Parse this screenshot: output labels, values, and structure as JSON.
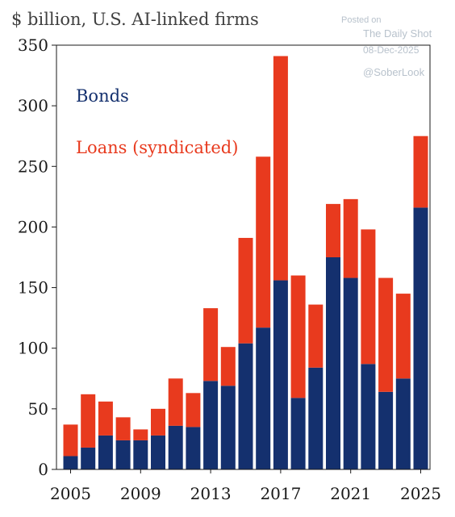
{
  "chart_data": {
    "type": "bar",
    "stacked": true,
    "title": "$ billion, U.S. AI-linked firms",
    "x": [
      2005,
      2006,
      2007,
      2008,
      2009,
      2010,
      2011,
      2012,
      2013,
      2014,
      2015,
      2016,
      2017,
      2018,
      2019,
      2020,
      2021,
      2022,
      2023,
      2024,
      2025
    ],
    "xticks": [
      "2005",
      "2009",
      "2013",
      "2017",
      "2021",
      "2025"
    ],
    "yticks": [
      "0",
      "50",
      "100",
      "150",
      "200",
      "250",
      "300",
      "350"
    ],
    "ylim": [
      0,
      350
    ],
    "series": [
      {
        "name": "Bonds",
        "color": "#14306e",
        "values": [
          11,
          18,
          28,
          24,
          24,
          28,
          36,
          35,
          73,
          69,
          104,
          117,
          156,
          59,
          84,
          175,
          158,
          87,
          64,
          75,
          216
        ]
      },
      {
        "name": "Loans (syndicated)",
        "color": "#e83a1e",
        "values": [
          26,
          44,
          28,
          19,
          9,
          22,
          39,
          28,
          60,
          32,
          87,
          141,
          185,
          101,
          52,
          44,
          65,
          111,
          94,
          70,
          59
        ]
      }
    ],
    "legend_placement": "top-left",
    "grid": false
  },
  "watermark": {
    "posted_on": "Posted on",
    "source": "The Daily Shot",
    "date": "08-Dec-2025",
    "handle": "@SoberLook"
  }
}
